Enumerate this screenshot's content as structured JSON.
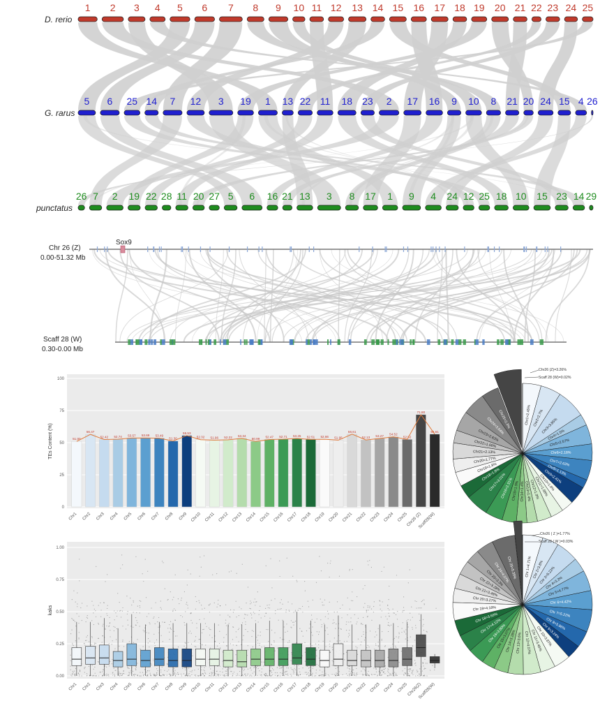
{
  "synteny": {
    "colors": {
      "rerio": "#c0392b",
      "rarus": "#1f1fcf",
      "punctatus": "#1e8c1e",
      "ribbon": "#cfcfcf"
    },
    "species": [
      {
        "name": "D. rerio",
        "key": "rerio",
        "chroms": [
          "1",
          "2",
          "3",
          "4",
          "5",
          "6",
          "7",
          "8",
          "9",
          "10",
          "11",
          "12",
          "13",
          "14",
          "15",
          "16",
          "17",
          "18",
          "19",
          "20",
          "21",
          "22",
          "23",
          "24",
          "25"
        ],
        "lengths": [
          25,
          28,
          22,
          20,
          26,
          26,
          30,
          22,
          25,
          16,
          18,
          20,
          23,
          18,
          22,
          20,
          22,
          18,
          20,
          22,
          18,
          12,
          18,
          17,
          14
        ]
      },
      {
        "name": "G. rarus",
        "key": "rarus",
        "chroms": [
          "5",
          "6",
          "25",
          "14",
          "7",
          "12",
          "3",
          "19",
          "1",
          "13",
          "22",
          "11",
          "18",
          "23",
          "2",
          "17",
          "16",
          "9",
          "10",
          "8",
          "21",
          "20",
          "24",
          "15",
          "4",
          "26"
        ],
        "lengths": [
          22,
          24,
          20,
          17,
          24,
          22,
          30,
          20,
          24,
          14,
          18,
          20,
          23,
          17,
          25,
          22,
          21,
          17,
          20,
          18,
          17,
          12,
          19,
          16,
          14,
          2
        ]
      },
      {
        "name": "punctatus",
        "key": "punctatus",
        "chroms": [
          "26",
          "7",
          "2",
          "19",
          "22",
          "28",
          "11",
          "20",
          "27",
          "5",
          "6",
          "16",
          "21",
          "13",
          "3",
          "8",
          "17",
          "1",
          "9",
          "4",
          "24",
          "12",
          "25",
          "18",
          "10",
          "15",
          "23",
          "14",
          "29"
        ],
        "lengths": [
          9,
          17,
          23,
          17,
          17,
          12,
          17,
          16,
          14,
          18,
          28,
          15,
          13,
          22,
          32,
          18,
          20,
          21,
          25,
          22,
          17,
          15,
          15,
          19,
          22,
          23,
          18,
          16,
          5
        ]
      }
    ]
  },
  "sex_synteny": {
    "top_label_1": "Chr 26 (Z)",
    "top_label_2": "0.00-51.32 Mb",
    "bottom_label_1": "Scaff 28 (W)",
    "bottom_label_2": "0.30-0.00 Mb",
    "gene": "Sox9"
  },
  "chart_data": [
    {
      "type": "bar",
      "ylabel": "TEs Content (%)",
      "ylim": [
        0,
        100
      ],
      "yticks": [
        0,
        25,
        50,
        75,
        100
      ],
      "categories": [
        "Chr1",
        "Chr2",
        "Chr3",
        "Chr4",
        "Chr5",
        "Chr6",
        "Chr7",
        "Chr8",
        "Chr9",
        "Chr10",
        "Chr11",
        "Chr12",
        "Chr13",
        "Chr14",
        "Chr15",
        "Chr16",
        "Chr17",
        "Chr18",
        "Chr19",
        "Chr20",
        "Chr21",
        "Chr22",
        "Chr23",
        "Chr24",
        "Chr25",
        "Chr26 (Z)",
        "Scaff28(W)"
      ],
      "values": [
        51.0,
        56.47,
        52.42,
        52.74,
        53.57,
        53.69,
        53.49,
        51.3,
        55.53,
        52.32,
        51.96,
        52.22,
        53.34,
        50.99,
        52.47,
        52.71,
        53.25,
        52.51,
        52.66,
        51.95,
        56.61,
        52.13,
        53.27,
        54.52,
        52.52,
        71.8,
        56.61
      ],
      "labels": [
        "51.00",
        "56.47",
        "52.42",
        "52.74",
        "53.57",
        "53.69",
        "53.49",
        "51.30",
        "55.53",
        "52.32",
        "51.96",
        "52.22",
        "53.34",
        "50.99",
        "52.47",
        "52.71",
        "53.25",
        "52.51",
        "52.66",
        "51.95",
        "56.61",
        "52.13",
        "53.27",
        "54.52",
        "52.52",
        "71.80",
        "56.61"
      ],
      "colors": [
        "#f4f8fc",
        "#d8e6f3",
        "#c5dbef",
        "#a9cce5",
        "#7fb5dc",
        "#5b9fd0",
        "#3d84bf",
        "#2468ac",
        "#0d3f7e",
        "#f5faf4",
        "#e7f4e4",
        "#d1ebcb",
        "#b4dcac",
        "#8cca87",
        "#5eb165",
        "#3b9a55",
        "#2b8249",
        "#1b6a38",
        "#fafafa",
        "#eeeeee",
        "#d9d9d9",
        "#c2c2c2",
        "#a6a6a6",
        "#8a8a8a",
        "#6b6b6b",
        "#454545",
        "#2a2a2a"
      ]
    },
    {
      "type": "box",
      "ylabel": "kaks",
      "ylim": [
        0,
        1
      ],
      "yticks": [
        "0.00",
        "0.25",
        "0.50",
        "0.75",
        "1.00"
      ],
      "categories": [
        "Chr1",
        "Chr2",
        "Chr3",
        "Chr4",
        "Chr5",
        "Chr6",
        "Chr7",
        "Chr8",
        "Chr9",
        "Chr10",
        "Chr11",
        "Chr12",
        "Chr13",
        "Chr14",
        "Chr15",
        "Chr16",
        "Chr17",
        "Chr18",
        "Chr19",
        "Chr20",
        "Chr21",
        "Chr22",
        "Chr23",
        "Chr24",
        "Chr25",
        "Chr26(Z)",
        "Scaff28(W)"
      ],
      "q1": [
        0.08,
        0.09,
        0.09,
        0.07,
        0.08,
        0.07,
        0.08,
        0.07,
        0.07,
        0.08,
        0.08,
        0.07,
        0.07,
        0.08,
        0.08,
        0.08,
        0.09,
        0.08,
        0.07,
        0.08,
        0.08,
        0.07,
        0.07,
        0.07,
        0.08,
        0.15,
        0.1
      ],
      "median": [
        0.13,
        0.14,
        0.14,
        0.12,
        0.13,
        0.12,
        0.13,
        0.12,
        0.12,
        0.13,
        0.13,
        0.12,
        0.11,
        0.13,
        0.13,
        0.13,
        0.14,
        0.13,
        0.12,
        0.13,
        0.12,
        0.12,
        0.12,
        0.12,
        0.13,
        0.22,
        0.12
      ],
      "q3": [
        0.22,
        0.23,
        0.24,
        0.19,
        0.25,
        0.2,
        0.22,
        0.21,
        0.21,
        0.21,
        0.21,
        0.2,
        0.2,
        0.21,
        0.22,
        0.22,
        0.25,
        0.22,
        0.2,
        0.25,
        0.2,
        0.2,
        0.2,
        0.21,
        0.22,
        0.32,
        0.15
      ],
      "whisker_low": [
        0.0,
        0.0,
        0.0,
        0.0,
        0.0,
        0.0,
        0.0,
        0.0,
        0.0,
        0.0,
        0.0,
        0.0,
        0.0,
        0.0,
        0.0,
        0.0,
        0.0,
        0.0,
        0.0,
        0.0,
        0.0,
        0.0,
        0.0,
        0.0,
        0.0,
        0.0,
        0.06
      ],
      "whisker_high": [
        0.42,
        0.42,
        0.45,
        0.37,
        0.48,
        0.4,
        0.42,
        0.41,
        0.41,
        0.41,
        0.41,
        0.4,
        0.4,
        0.41,
        0.43,
        0.43,
        0.5,
        0.43,
        0.4,
        0.47,
        0.4,
        0.4,
        0.4,
        0.41,
        0.42,
        0.48,
        0.17
      ],
      "colors": [
        "#f4f8fc",
        "#d8e6f3",
        "#c5dbef",
        "#a9cce5",
        "#7fb5dc",
        "#5b9fd0",
        "#3d84bf",
        "#2468ac",
        "#0d3f7e",
        "#f5faf4",
        "#e7f4e4",
        "#d1ebcb",
        "#b4dcac",
        "#8cca87",
        "#5eb165",
        "#3b9a55",
        "#2b8249",
        "#1b6a38",
        "#fafafa",
        "#eeeeee",
        "#d9d9d9",
        "#c2c2c2",
        "#a6a6a6",
        "#8a8a8a",
        "#6b6b6b",
        "#454545",
        "#2a2a2a"
      ]
    },
    {
      "type": "pie",
      "labels": [
        "Chr1=2.45%",
        "Chr2=2.7%",
        "Chr3=3.85%",
        "Chr4=1.5%",
        "Chr5=2.57%",
        "Chr6=2.18%",
        "Chr7=2.63%",
        "Chr8=1.13%",
        "Chr9=2.41%",
        "Chr10=1.6%",
        "Chr11=1.68%",
        "Chr12=1.9%",
        "Chr13=1.4%",
        "Chr14=1.4%",
        "Chr15=1.9%",
        "Chr16=2.31%",
        "Chr17=3.01%",
        "Chr18=1.8%",
        "Chr19=1.9%",
        "Chr20=1.77%",
        "Chr21=2.13%",
        "Chr22=1.68%",
        "Chr23=2.63%",
        "Chr24=3.04%",
        "Chr25=2.3%",
        "Chr26 (Z)=3.26%",
        "Scaff 28 (W)=0.02%"
      ],
      "values": [
        2.45,
        2.7,
        3.85,
        1.5,
        2.57,
        2.18,
        2.63,
        1.13,
        2.41,
        1.6,
        1.68,
        1.9,
        1.4,
        1.4,
        1.9,
        2.31,
        3.01,
        1.8,
        1.9,
        1.77,
        2.13,
        1.68,
        2.63,
        3.04,
        2.3,
        3.26,
        0.02
      ],
      "colors": [
        "#f4f8fc",
        "#d8e6f3",
        "#c5dbef",
        "#a9cce5",
        "#7fb5dc",
        "#5b9fd0",
        "#3d84bf",
        "#2468ac",
        "#0d3f7e",
        "#f5faf4",
        "#e7f4e4",
        "#d1ebcb",
        "#b4dcac",
        "#8cca87",
        "#5eb165",
        "#3b9a55",
        "#2b8249",
        "#1b6a38",
        "#fafafa",
        "#eeeeee",
        "#d9d9d9",
        "#c2c2c2",
        "#a6a6a6",
        "#8a8a8a",
        "#6b6b6b",
        "#454545",
        "#2a2a2a"
      ]
    },
    {
      "type": "pie",
      "labels": [
        "Chr 1=4.71%",
        "Chr 2=3.8%",
        "Chr 3=5.22%",
        "Chr 4=3.3%",
        "Chr 5=4.77%",
        "Chr 6=4.42%",
        "Chr 7=5.22%",
        "Chr 8=3.86%",
        "Chr 9=3.24%",
        "Chr 10=3.87%",
        "Chr 11=3.46%",
        "Chr 12=4.07%",
        "Chr 13=3.6%",
        "Chr 14=3.28%",
        "Chr 15=3.07%",
        "Chr 16=3.80%",
        "Chr 17=4.12%",
        "Chr 18=3.69%",
        "Chr 19=4.18%",
        "Chr 20=3.27%",
        "Chr 21=3.48%",
        "Chr 22=3.28%",
        "Chr 23=3.3%",
        "Chr 24=4.07%",
        "Chr 25=5.35%",
        "Chr26 ( Z )=1.77%",
        "Scaff 28 ( W )=0.03%"
      ],
      "values": [
        4.71,
        3.8,
        5.22,
        3.3,
        4.77,
        4.42,
        5.22,
        3.86,
        3.24,
        3.87,
        3.46,
        4.07,
        3.6,
        3.28,
        3.07,
        3.8,
        4.12,
        3.69,
        4.18,
        3.27,
        3.48,
        3.28,
        3.3,
        4.07,
        5.35,
        1.77,
        0.03
      ],
      "colors": [
        "#f4f8fc",
        "#d8e6f3",
        "#c5dbef",
        "#a9cce5",
        "#7fb5dc",
        "#5b9fd0",
        "#3d84bf",
        "#2468ac",
        "#0d3f7e",
        "#f5faf4",
        "#e7f4e4",
        "#d1ebcb",
        "#b4dcac",
        "#8cca87",
        "#5eb165",
        "#3b9a55",
        "#2b8249",
        "#1b6a38",
        "#fafafa",
        "#eeeeee",
        "#d9d9d9",
        "#c2c2c2",
        "#a6a6a6",
        "#8a8a8a",
        "#6b6b6b",
        "#454545",
        "#2a2a2a"
      ]
    }
  ]
}
